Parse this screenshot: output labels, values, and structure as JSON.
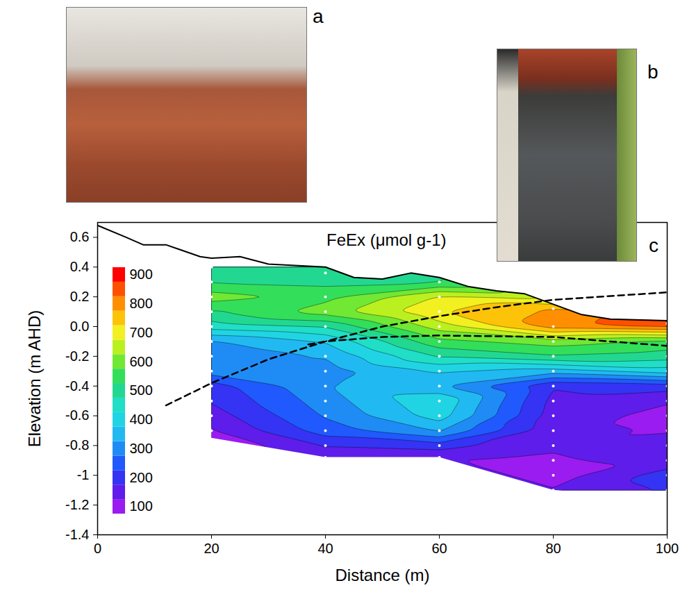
{
  "panel_labels": [
    "a",
    "b",
    "c"
  ],
  "chart_data": {
    "type": "contour",
    "title": "FeEx (μmol g-1)",
    "x_label": "Distance (m)",
    "y_label": "Elevation (m AHD)",
    "xlim": [
      0,
      100
    ],
    "xticks": [
      0,
      20,
      40,
      60,
      80,
      100
    ],
    "ylim": [
      -1.4,
      0.7
    ],
    "yticks": [
      -1.4,
      -1.2,
      -1.0,
      -0.8,
      -0.6,
      -0.4,
      -0.2,
      {
        "value": 0,
        "label": "0.0"
      },
      0.2,
      0.4,
      0.6
    ],
    "grid": false,
    "colorbar": {
      "range": [
        75,
        925
      ],
      "ticks": [
        100,
        200,
        300,
        400,
        500,
        600,
        700,
        800,
        900
      ],
      "thresholds": [
        75,
        125,
        175,
        225,
        275,
        325,
        375,
        425,
        475,
        525,
        575,
        625,
        675,
        725,
        775,
        825,
        875,
        925
      ]
    },
    "profiles": [
      {
        "x": 20,
        "elevations": [
          0.4,
          0.3,
          0.2,
          0.1,
          0.0,
          -0.1,
          -0.2,
          -0.3,
          -0.4,
          -0.5,
          -0.6,
          -0.7
        ],
        "values": [
          480,
          520,
          600,
          520,
          450,
          320,
          280,
          300,
          200,
          180,
          150,
          120
        ]
      },
      {
        "x": 40,
        "elevations": [
          0.36,
          0.2,
          0.1,
          0.0,
          -0.1,
          -0.2,
          -0.3,
          -0.4,
          -0.5,
          -0.6,
          -0.7,
          -0.8,
          -0.88
        ],
        "values": [
          480,
          560,
          600,
          480,
          380,
          330,
          300,
          320,
          300,
          280,
          250,
          180,
          130
        ]
      },
      {
        "x": 60,
        "elevations": [
          0.3,
          0.2,
          0.1,
          0.0,
          -0.1,
          -0.2,
          -0.3,
          -0.4,
          -0.5,
          -0.6,
          -0.7,
          -0.8,
          -0.88
        ],
        "values": [
          520,
          680,
          720,
          650,
          560,
          480,
          380,
          330,
          420,
          400,
          330,
          200,
          130
        ]
      },
      {
        "x": 80,
        "elevations": [
          0.12,
          0.0,
          -0.1,
          -0.2,
          -0.3,
          -0.4,
          -0.5,
          -0.6,
          -0.7,
          -0.8,
          -0.9,
          -1.0,
          -1.1
        ],
        "values": [
          780,
          800,
          600,
          520,
          350,
          180,
          160,
          150,
          140,
          130,
          120,
          100,
          130
        ]
      },
      {
        "x": 100,
        "elevations": [
          0.02,
          -0.1,
          -0.2,
          -0.3,
          -0.4,
          -0.5,
          -0.6,
          -0.7,
          -0.8,
          -0.9,
          -1.0,
          -1.1
        ],
        "values": [
          880,
          560,
          500,
          400,
          200,
          130,
          110,
          120,
          150,
          140,
          200,
          180
        ]
      }
    ],
    "surface": {
      "line_style": "solid",
      "color": "#000000",
      "x": [
        0,
        5,
        8,
        12,
        18,
        20,
        25,
        30,
        40,
        45,
        50,
        55,
        60,
        65,
        70,
        75,
        80,
        85,
        90,
        100
      ],
      "y": [
        0.68,
        0.6,
        0.55,
        0.55,
        0.47,
        0.46,
        0.47,
        0.42,
        0.4,
        0.33,
        0.32,
        0.36,
        0.33,
        0.27,
        0.24,
        0.22,
        0.15,
        0.08,
        0.05,
        0.04
      ]
    },
    "bottom": {
      "x": [
        20,
        40,
        60,
        80,
        100
      ],
      "y": [
        -0.75,
        -0.88,
        -0.88,
        -1.1,
        -1.17
      ]
    },
    "dashed_lines": [
      {
        "line_style": "dashed",
        "color": "#000000",
        "x": [
          12,
          20,
          30,
          40,
          50,
          60,
          70,
          80,
          100
        ],
        "y": [
          -0.53,
          -0.38,
          -0.22,
          -0.1,
          0.0,
          0.07,
          0.13,
          0.18,
          0.23
        ]
      },
      {
        "line_style": "dashed",
        "color": "#000000",
        "x": [
          37,
          40,
          50,
          60,
          80,
          100
        ],
        "y": [
          -0.12,
          -0.1,
          -0.07,
          -0.06,
          -0.07,
          -0.13
        ]
      }
    ]
  }
}
